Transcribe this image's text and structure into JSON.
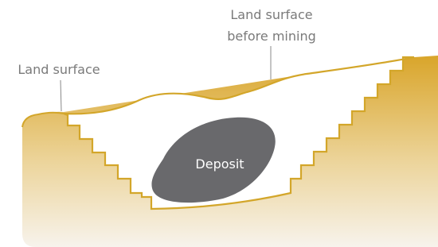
{
  "labels": {
    "land_surface": "Land surface",
    "before_mining": [
      "Land surface",
      "before mining"
    ],
    "deposit": "Deposit"
  }
}
